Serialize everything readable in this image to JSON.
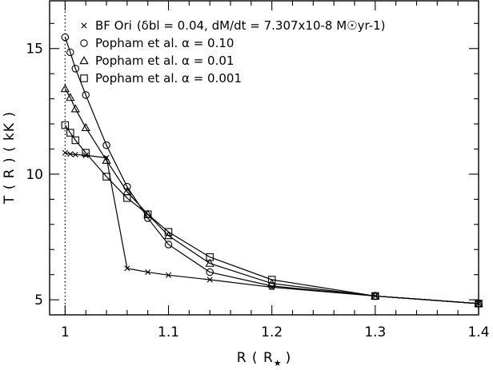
{
  "chart_data": {
    "type": "line",
    "xlabel": "R ( R",
    "xlabel_subscript": "★",
    "xlabel_close": ")",
    "ylabel": "T ( R )  ( kK )",
    "xlim": [
      0.985,
      1.4
    ],
    "ylim": [
      4.4,
      16.9
    ],
    "x_ticks": [
      1.0,
      1.1,
      1.2,
      1.3,
      1.4
    ],
    "x_tick_labels": [
      "1",
      "1.1",
      "1.2",
      "1.3",
      "1.4"
    ],
    "y_ticks": [
      5,
      10,
      15
    ],
    "y_tick_labels": [
      "5",
      "10",
      "15"
    ],
    "reference_line_x": 1.0,
    "legend_position": "top-right",
    "series": [
      {
        "name": "BF Ori",
        "legend_suffix": "(δbl = 0.04, dM/dt = 7.307x10-8 M☉yr-1)",
        "marker": "x",
        "points": [
          [
            1.0,
            10.85
          ],
          [
            1.005,
            10.8
          ],
          [
            1.01,
            10.78
          ],
          [
            1.02,
            10.75
          ],
          [
            1.04,
            10.65
          ],
          [
            1.06,
            6.25
          ],
          [
            1.08,
            6.1
          ],
          [
            1.1,
            5.98
          ],
          [
            1.14,
            5.8
          ],
          [
            1.2,
            5.5
          ],
          [
            1.3,
            5.15
          ],
          [
            1.4,
            4.85
          ]
        ]
      },
      {
        "name": "Popham et al. α = 0.10",
        "marker": "circle",
        "points": [
          [
            1.0,
            15.45
          ],
          [
            1.005,
            14.85
          ],
          [
            1.01,
            14.2
          ],
          [
            1.02,
            13.15
          ],
          [
            1.04,
            11.15
          ],
          [
            1.06,
            9.5
          ],
          [
            1.08,
            8.25
          ],
          [
            1.1,
            7.2
          ],
          [
            1.14,
            6.1
          ],
          [
            1.2,
            5.55
          ],
          [
            1.3,
            5.15
          ],
          [
            1.4,
            4.85
          ]
        ]
      },
      {
        "name": "Popham et al. α = 0.01",
        "marker": "triangle",
        "points": [
          [
            1.0,
            13.4
          ],
          [
            1.005,
            13.05
          ],
          [
            1.01,
            12.6
          ],
          [
            1.02,
            11.85
          ],
          [
            1.04,
            10.55
          ],
          [
            1.06,
            9.3
          ],
          [
            1.08,
            8.4
          ],
          [
            1.1,
            7.55
          ],
          [
            1.14,
            6.45
          ],
          [
            1.2,
            5.65
          ],
          [
            1.3,
            5.15
          ],
          [
            1.4,
            4.85
          ]
        ]
      },
      {
        "name": "Popham et al. α = 0.001",
        "marker": "square",
        "points": [
          [
            1.0,
            11.95
          ],
          [
            1.005,
            11.65
          ],
          [
            1.01,
            11.35
          ],
          [
            1.02,
            10.85
          ],
          [
            1.04,
            9.9
          ],
          [
            1.06,
            9.05
          ],
          [
            1.08,
            8.4
          ],
          [
            1.1,
            7.7
          ],
          [
            1.14,
            6.7
          ],
          [
            1.2,
            5.8
          ],
          [
            1.3,
            5.15
          ],
          [
            1.4,
            4.85
          ]
        ]
      }
    ]
  }
}
